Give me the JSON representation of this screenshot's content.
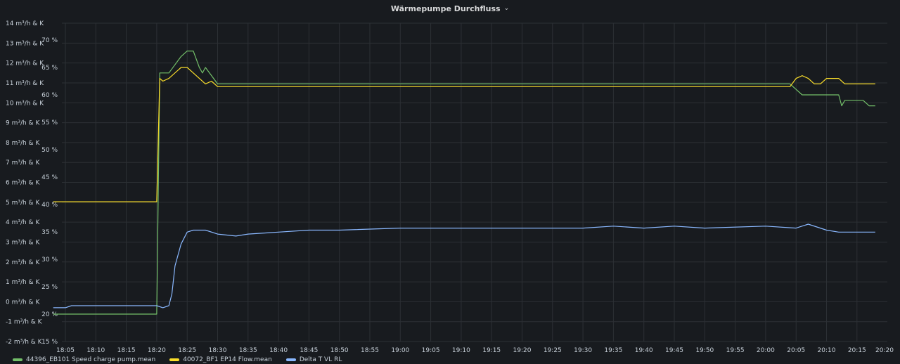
{
  "panel": {
    "title": "Wärmepumpe Durchfluss"
  },
  "chart_data": {
    "type": "line",
    "x_ticks": [
      "18:05",
      "18:10",
      "18:15",
      "18:20",
      "18:25",
      "18:30",
      "18:35",
      "18:40",
      "18:45",
      "18:50",
      "18:55",
      "19:00",
      "19:05",
      "19:10",
      "19:15",
      "19:20",
      "19:25",
      "19:30",
      "19:35",
      "19:40",
      "19:45",
      "19:50",
      "19:55",
      "20:00",
      "20:05",
      "20:10",
      "20:15",
      "20:20"
    ],
    "y_left": {
      "ticks": [
        "14 m³/h & K",
        "13 m³/h & K",
        "12 m³/h & K",
        "11 m³/h & K",
        "10 m³/h & K",
        "9 m³/h & K",
        "8 m³/h & K",
        "7 m³/h & K",
        "6 m³/h & K",
        "5 m³/h & K",
        "4 m³/h & K",
        "3 m³/h & K",
        "2 m³/h & K",
        "1 m³/h & K",
        "0 m³/h & K",
        "-1 m³/h & K",
        "-2 m³/h & K"
      ],
      "range": [
        -2,
        14
      ]
    },
    "y_right": {
      "ticks": [
        "70 %",
        "65 %",
        "60 %",
        "55 %",
        "50 %",
        "45 %",
        "40 %",
        "35 %",
        "30 %",
        "25 %",
        "20 %",
        "15 %"
      ],
      "range": [
        15,
        71
      ]
    },
    "grid": true,
    "legend_position": "bottom-left",
    "series": [
      {
        "name": "44396_EB101 Speed charge pump.mean",
        "color": "#73bf69",
        "axis": "right",
        "points": [
          [
            "18:03",
            20
          ],
          [
            "18:20",
            20
          ],
          [
            "18:20:30",
            64
          ],
          [
            "18:22",
            64
          ],
          [
            "18:24",
            67
          ],
          [
            "18:25",
            68
          ],
          [
            "18:26",
            68
          ],
          [
            "18:27",
            65
          ],
          [
            "18:27:30",
            64
          ],
          [
            "18:28",
            65
          ],
          [
            "18:30",
            62
          ],
          [
            "20:04",
            62
          ],
          [
            "20:06",
            60
          ],
          [
            "20:10",
            60
          ],
          [
            "20:12",
            60
          ],
          [
            "20:12:30",
            58
          ],
          [
            "20:13",
            59
          ],
          [
            "20:16",
            59
          ],
          [
            "20:17",
            58
          ],
          [
            "20:18",
            58
          ]
        ]
      },
      {
        "name": "40072_BF1 EP14 Flow.mean",
        "color": "#fade2a",
        "axis": "right",
        "points": [
          [
            "18:03",
            40.5
          ],
          [
            "18:20",
            40.5
          ],
          [
            "18:20:30",
            63
          ],
          [
            "18:21",
            62.5
          ],
          [
            "18:22",
            63
          ],
          [
            "18:24",
            65
          ],
          [
            "18:25",
            65
          ],
          [
            "18:26",
            64
          ],
          [
            "18:27",
            63
          ],
          [
            "18:28",
            62
          ],
          [
            "18:29",
            62.5
          ],
          [
            "18:30",
            61.5
          ],
          [
            "18:35",
            61.5
          ],
          [
            "18:40",
            61.5
          ],
          [
            "18:50",
            61.5
          ],
          [
            "19:00",
            61.5
          ],
          [
            "19:10",
            61.5
          ],
          [
            "19:20",
            61.5
          ],
          [
            "19:30",
            61.5
          ],
          [
            "19:40",
            61.5
          ],
          [
            "19:50",
            61.5
          ],
          [
            "20:00",
            61.5
          ],
          [
            "20:04",
            61.5
          ],
          [
            "20:05",
            63
          ],
          [
            "20:06",
            63.5
          ],
          [
            "20:07",
            63
          ],
          [
            "20:08",
            62
          ],
          [
            "20:09",
            62
          ],
          [
            "20:10",
            63
          ],
          [
            "20:12",
            63
          ],
          [
            "20:13",
            62
          ],
          [
            "20:17",
            62
          ],
          [
            "20:18",
            62
          ]
        ]
      },
      {
        "name": "Delta T VL RL",
        "color": "#8ab8ff",
        "axis": "left",
        "points": [
          [
            "18:03",
            -0.3
          ],
          [
            "18:05",
            -0.3
          ],
          [
            "18:06",
            -0.2
          ],
          [
            "18:20",
            -0.2
          ],
          [
            "18:21",
            -0.3
          ],
          [
            "18:22",
            -0.2
          ],
          [
            "18:22:30",
            0.4
          ],
          [
            "18:23",
            1.8
          ],
          [
            "18:24",
            2.9
          ],
          [
            "18:25",
            3.5
          ],
          [
            "18:26",
            3.6
          ],
          [
            "18:28",
            3.6
          ],
          [
            "18:30",
            3.4
          ],
          [
            "18:33",
            3.3
          ],
          [
            "18:35",
            3.4
          ],
          [
            "18:40",
            3.5
          ],
          [
            "18:45",
            3.6
          ],
          [
            "18:50",
            3.6
          ],
          [
            "19:00",
            3.7
          ],
          [
            "19:10",
            3.7
          ],
          [
            "19:20",
            3.7
          ],
          [
            "19:25",
            3.7
          ],
          [
            "19:30",
            3.7
          ],
          [
            "19:35",
            3.8
          ],
          [
            "19:40",
            3.7
          ],
          [
            "19:45",
            3.8
          ],
          [
            "19:50",
            3.7
          ],
          [
            "20:00",
            3.8
          ],
          [
            "20:05",
            3.7
          ],
          [
            "20:07",
            3.9
          ],
          [
            "20:10",
            3.6
          ],
          [
            "20:12",
            3.5
          ],
          [
            "20:15",
            3.5
          ],
          [
            "20:18",
            3.5
          ]
        ]
      }
    ]
  }
}
